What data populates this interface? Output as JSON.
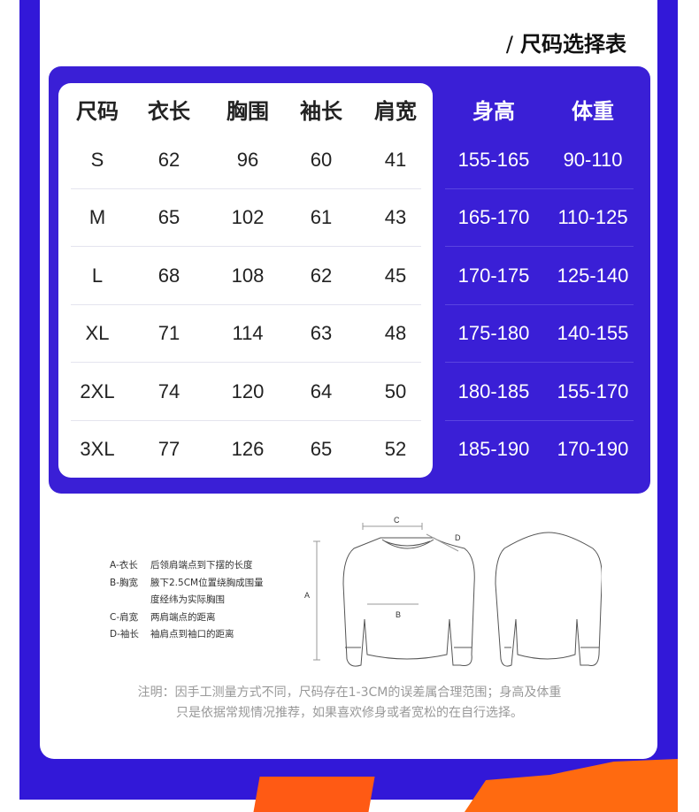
{
  "title": "尺码选择表",
  "table": {
    "headers": [
      "尺码",
      "衣长",
      "胸围",
      "袖长",
      "肩宽"
    ],
    "right_headers": [
      "身高",
      "体重"
    ],
    "rows": [
      [
        "S",
        "62",
        "96",
        "60",
        "41",
        "155-165",
        "90-110"
      ],
      [
        "M",
        "65",
        "102",
        "61",
        "43",
        "165-170",
        "110-125"
      ],
      [
        "L",
        "68",
        "108",
        "62",
        "45",
        "170-175",
        "125-140"
      ],
      [
        "XL",
        "71",
        "114",
        "63",
        "48",
        "175-180",
        "140-155"
      ],
      [
        "2XL",
        "74",
        "120",
        "64",
        "50",
        "180-185",
        "155-170"
      ],
      [
        "3XL",
        "77",
        "126",
        "65",
        "52",
        "185-190",
        "170-190"
      ]
    ]
  },
  "legend": [
    {
      "key": "A-衣长",
      "desc": "后领肩端点到下摆的长度"
    },
    {
      "key": "B-胸宽",
      "desc": "腋下2.5CM位置绕胸成围量",
      "desc2": "度经纬为实际胸围"
    },
    {
      "key": "C-肩宽",
      "desc": "两肩端点的距离"
    },
    {
      "key": "D-袖长",
      "desc": "袖肩点到袖口的距离"
    }
  ],
  "diagram_labels": {
    "a": "A",
    "b": "B",
    "c": "C",
    "d": "D"
  },
  "note": [
    "注明：因手工测量方式不同，尺码存在1-3CM的误差属合理范围；身高及体重",
    "只是依据常规情况推荐，如果喜欢修身或者宽松的在自行选择。"
  ],
  "colors": {
    "panel": "#3a1fd6",
    "background": "#3218d8",
    "accent": "#ff5a14"
  }
}
